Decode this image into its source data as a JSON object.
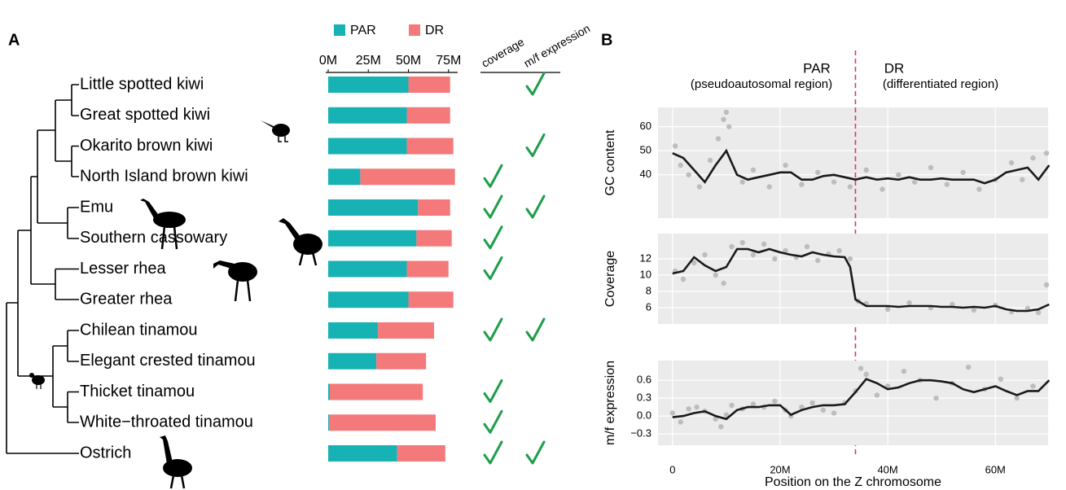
{
  "chart_data": [
    {
      "type": "stacked_bar_h",
      "panel_label": "A",
      "categories": [
        "Little spotted kiwi",
        "Great spotted kiwi",
        "Okarito brown kiwi",
        "North Island brown kiwi",
        "Emu",
        "Southern cassowary",
        "Lesser rhea",
        "Greater rhea",
        "Chilean tinamou",
        "Elegant crested tinamou",
        "Thicket tinamou",
        "White−throated tinamou",
        "Ostrich"
      ],
      "series": [
        {
          "name": "PAR",
          "color": "#17b2b4",
          "values": [
            50,
            49,
            49,
            20,
            56,
            55,
            49,
            50,
            31,
            30,
            1,
            0.5,
            43
          ]
        },
        {
          "name": "DR",
          "color": "#f3797a",
          "values": [
            26,
            27,
            29,
            59,
            20,
            22,
            26,
            28,
            35,
            31,
            58,
            66.5,
            30
          ]
        }
      ],
      "xlim": [
        0,
        80
      ],
      "xticks": [
        {
          "value": 0,
          "label": "0M"
        },
        {
          "value": 25,
          "label": "25M"
        },
        {
          "value": 50,
          "label": "50M"
        },
        {
          "value": 75,
          "label": "75M"
        }
      ],
      "columns": [
        {
          "name": "coverage",
          "color": "#1e9e4a",
          "values": [
            false,
            false,
            false,
            true,
            true,
            true,
            true,
            false,
            true,
            false,
            true,
            true,
            true
          ]
        },
        {
          "name": "m/f expression",
          "color": "#1e9e4a",
          "values": [
            true,
            false,
            true,
            false,
            true,
            false,
            false,
            false,
            true,
            false,
            false,
            false,
            true
          ]
        }
      ]
    },
    {
      "type": "scatter_smooth",
      "panel_label": "B",
      "ylabel": "GC content",
      "ylim": [
        22,
        68
      ],
      "yticks": [
        40,
        50,
        60
      ],
      "grid": true,
      "divider": 34,
      "divider_color": "#e0336a",
      "annotations": [
        {
          "text": "PAR",
          "sub": "(pseudoautosomal region)",
          "color": "#17b2b4"
        },
        {
          "text": "DR",
          "sub": "(differentiated region)",
          "color": "#f3797a"
        }
      ],
      "points": {
        "color": "#bdbdbd",
        "x": [
          0.5,
          1.5,
          3,
          5,
          7,
          8.5,
          9.5,
          10,
          10.5,
          13,
          15,
          18,
          21,
          24,
          27,
          30,
          33,
          36,
          39,
          42,
          45,
          48,
          51,
          54,
          57,
          60,
          63,
          65,
          67,
          69.5
        ],
        "y": [
          52,
          44,
          40,
          35,
          46,
          55,
          63,
          66,
          60,
          37,
          42,
          35,
          44,
          36,
          41,
          37,
          35,
          42,
          34,
          40,
          37,
          43,
          36,
          41,
          34,
          38,
          45,
          38,
          47,
          49
        ]
      },
      "smooth": {
        "color": "#1a1a1a",
        "x": [
          0,
          2,
          4,
          6,
          8,
          10,
          12,
          14,
          16,
          18,
          20,
          22,
          24,
          26,
          28,
          30,
          32,
          33,
          34,
          36,
          38,
          40,
          42,
          44,
          46,
          48,
          50,
          52,
          54,
          56,
          58,
          60,
          62,
          64,
          66,
          68,
          70
        ],
        "y": [
          49,
          47,
          42,
          37,
          44,
          50,
          40,
          38,
          39,
          40,
          41,
          41,
          38,
          38,
          39.5,
          40,
          39,
          38.5,
          38,
          39,
          38,
          38.5,
          38,
          39,
          38,
          38,
          38.5,
          38,
          38,
          38,
          36.5,
          38,
          41,
          42,
          43,
          38,
          44
        ]
      }
    },
    {
      "type": "scatter_smooth",
      "ylabel": "Coverage",
      "ylim": [
        4,
        15.1
      ],
      "yticks": [
        6,
        8,
        10,
        12
      ],
      "grid": true,
      "points": {
        "color": "#bdbdbd",
        "x": [
          0.5,
          2,
          4,
          6,
          8,
          9.5,
          11,
          13,
          15,
          17,
          19,
          21,
          23,
          25,
          27,
          29,
          31,
          33,
          34.5,
          36,
          40,
          44,
          48,
          52,
          56,
          60,
          63,
          66,
          68,
          69.5
        ],
        "y": [
          10.5,
          9.5,
          11.5,
          12.5,
          10,
          9,
          13.5,
          14,
          12.5,
          13.8,
          12,
          13,
          12.2,
          13.5,
          11.8,
          12.6,
          13,
          12,
          6.8,
          6.5,
          5.8,
          6.6,
          6,
          6.4,
          5.7,
          6.3,
          5.5,
          5.9,
          5.4,
          8.8
        ]
      },
      "smooth": {
        "color": "#1a1a1a",
        "x": [
          0,
          2,
          4,
          6,
          8,
          10,
          12,
          14,
          16,
          18,
          20,
          22,
          24,
          26,
          28,
          30,
          32,
          33,
          34,
          36,
          38,
          40,
          42,
          44,
          46,
          48,
          50,
          52,
          54,
          56,
          58,
          60,
          62,
          64,
          66,
          68,
          70
        ],
        "y": [
          10.2,
          10.5,
          12.2,
          11.2,
          10.5,
          11,
          13.2,
          13.2,
          12.8,
          13.2,
          12.8,
          12.5,
          12.3,
          12.8,
          12.5,
          12.3,
          12.2,
          11,
          7,
          6.2,
          6.2,
          6.2,
          6.1,
          6.2,
          6.2,
          6.2,
          6.1,
          6.1,
          6,
          6.1,
          6,
          6.2,
          5.8,
          5.6,
          5.6,
          5.8,
          6.4
        ]
      }
    },
    {
      "type": "scatter_smooth",
      "ylabel": "m/f expression",
      "xlabel": "Position on the Z chromosome",
      "xlim": [
        -2.7,
        69.8
      ],
      "xticks": [
        0,
        {
          "value": 20,
          "label": "20M"
        },
        {
          "value": 40,
          "label": "40M"
        },
        {
          "value": 60,
          "label": "60M"
        }
      ],
      "ylim": [
        -0.49,
        0.93
      ],
      "yticks": [
        {
          "value": -0.3,
          "label": "−0.3"
        },
        {
          "value": 0,
          "label": "0.0"
        },
        0.3,
        0.6
      ],
      "grid": true,
      "points": {
        "color": "#bdbdbd",
        "x": [
          0,
          1.5,
          3,
          4.5,
          6,
          8,
          9,
          10,
          11,
          13,
          15,
          17,
          19,
          21,
          22,
          24,
          26,
          28,
          30,
          32,
          34,
          35,
          36,
          38,
          40,
          43,
          46,
          49,
          52,
          55,
          58,
          61,
          64,
          67
        ],
        "y": [
          0.05,
          -0.1,
          0.12,
          0.15,
          0.08,
          -0.05,
          -0.18,
          0.02,
          0.18,
          0.12,
          0.2,
          0.15,
          0.25,
          0.1,
          0,
          0.15,
          0.22,
          0.1,
          0.05,
          0.22,
          0.42,
          0.8,
          0.7,
          0.35,
          0.5,
          0.75,
          0.6,
          0.3,
          0.55,
          0.82,
          0.45,
          0.62,
          0.3,
          0.5
        ]
      },
      "smooth": {
        "color": "#1a1a1a",
        "x": [
          0,
          2,
          4,
          6,
          8,
          10,
          12,
          14,
          16,
          18,
          20,
          22,
          24,
          26,
          28,
          30,
          32,
          33,
          34,
          36,
          38,
          40,
          42,
          44,
          46,
          48,
          50,
          52,
          54,
          56,
          58,
          60,
          62,
          64,
          66,
          68,
          70
        ],
        "y": [
          -0.02,
          0,
          0.05,
          0.08,
          0,
          -0.05,
          0.1,
          0.15,
          0.15,
          0.18,
          0.18,
          0.02,
          0.1,
          0.15,
          0.18,
          0.18,
          0.2,
          0.3,
          0.4,
          0.62,
          0.55,
          0.45,
          0.48,
          0.55,
          0.6,
          0.6,
          0.58,
          0.55,
          0.45,
          0.4,
          0.45,
          0.5,
          0.42,
          0.35,
          0.42,
          0.42,
          0.6
        ]
      }
    }
  ]
}
